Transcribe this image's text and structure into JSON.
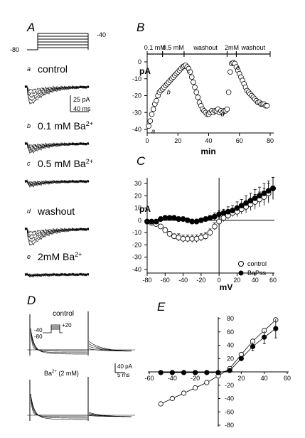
{
  "panels": {
    "A": {
      "label": "A",
      "protocol": {
        "hold": "-80",
        "step": "-40"
      },
      "traces": [
        {
          "letter": "a",
          "label": "control",
          "peak": 42
        },
        {
          "letter": "b",
          "label": "0.1 mM Ba",
          "sup": "2+",
          "peak": 22
        },
        {
          "letter": "c",
          "label": "0.5 mM Ba",
          "sup": "2+",
          "peak": 12
        },
        {
          "letter": "d",
          "label": "washout",
          "peak": 40
        },
        {
          "letter": "e",
          "label": "2mM Ba",
          "sup": "2+",
          "peak": 4
        }
      ],
      "scalebar": {
        "y": "25 pA",
        "x": "40 ms"
      }
    },
    "B": {
      "label": "B",
      "ylabel": "pA",
      "xlabel": "min",
      "bars": [
        "0.1 mM",
        "0.5 mM",
        "washout",
        "2mM",
        "washout"
      ],
      "point_labels": [
        "a",
        "b",
        "c",
        "d",
        "e"
      ]
    },
    "C": {
      "label": "C",
      "ylabel": "pA",
      "xlabel": "mV",
      "legend": [
        "control",
        "BaPss"
      ]
    },
    "D": {
      "label": "D",
      "top_label": "control",
      "bottom_label": "Ba",
      "bottom_sup": "2+",
      "bottom_suffix": " (2 mM)",
      "protocol": {
        "v1": "-40",
        "v2": "-80",
        "v3": "+20"
      },
      "scalebar": {
        "y": "40 pA",
        "x": "5 ms"
      }
    },
    "E": {
      "label": "E"
    }
  },
  "chart_data": [
    {
      "panel": "B",
      "type": "scatter",
      "xlim": [
        0,
        80
      ],
      "ylim": [
        -40,
        0
      ],
      "xticks": [
        0,
        20,
        40,
        60,
        80
      ],
      "yticks": [
        0,
        -10,
        -20,
        -30,
        -40
      ],
      "segments": [
        {
          "label": "0.1 mM",
          "x0": 0,
          "x1": 10
        },
        {
          "label": "0.5 mM",
          "x0": 10,
          "x1": 24
        },
        {
          "label": "washout",
          "x0": 24,
          "x1": 52
        },
        {
          "label": "2mM",
          "x0": 52,
          "x1": 58
        },
        {
          "label": "washout",
          "x0": 58,
          "x1": 80
        }
      ],
      "x": [
        1,
        2,
        3,
        4,
        5,
        6,
        7,
        8,
        9,
        10,
        11,
        12,
        13,
        14,
        15,
        16,
        17,
        18,
        19,
        20,
        21,
        22,
        23,
        24,
        25,
        26,
        27,
        28,
        29,
        30,
        31,
        32,
        33,
        34,
        35,
        36,
        37,
        38,
        39,
        40,
        41,
        42,
        43,
        44,
        45,
        46,
        47,
        48,
        49,
        50,
        51,
        52,
        53,
        54,
        55,
        56,
        57,
        58,
        59,
        60,
        61,
        62,
        63,
        64,
        65,
        66,
        67,
        68,
        69,
        70,
        71,
        72,
        73,
        74,
        75,
        76,
        77,
        78
      ],
      "y": [
        -38,
        -35,
        -31,
        -28,
        -25,
        -23,
        -20,
        -18,
        -17,
        -16,
        -15,
        -14,
        -13,
        -12,
        -11,
        -10,
        -9,
        -8,
        -7,
        -6,
        -5,
        -4,
        -3,
        -2.5,
        -2,
        -3,
        -4,
        -6,
        -9,
        -12,
        -15,
        -18,
        -21,
        -24,
        -26,
        -28,
        -29,
        -30,
        -31,
        -31,
        -30,
        -29,
        -30,
        -29,
        -29,
        -28,
        -30,
        -29,
        -30,
        -29,
        -29,
        -28,
        -18,
        -6,
        -1,
        -0.5,
        -1,
        -3,
        -5,
        -7,
        -9,
        -11,
        -13,
        -15,
        -17,
        -18,
        -19,
        -20,
        -21,
        -22,
        -23,
        -24,
        -24,
        -25,
        -25,
        -25,
        -26,
        -26
      ],
      "point_labels": [
        {
          "label": "a",
          "x": 1,
          "y": -38
        },
        {
          "label": "b",
          "x": 11,
          "y": -15
        },
        {
          "label": "c",
          "x": 24,
          "y": -2.5
        },
        {
          "label": "d",
          "x": 46,
          "y": -28
        },
        {
          "label": "e",
          "x": 56,
          "y": -0.5
        }
      ],
      "xlabel": "min",
      "ylabel": "pA"
    },
    {
      "panel": "C",
      "type": "scatter",
      "xlim": [
        -80,
        60
      ],
      "ylim": [
        -40,
        30
      ],
      "xticks": [
        -80,
        -60,
        -40,
        -20,
        0,
        20,
        40,
        60
      ],
      "yticks": [
        30,
        20,
        10,
        0,
        -10,
        -20,
        -30,
        -40
      ],
      "x": [
        -80,
        -75,
        -70,
        -65,
        -60,
        -55,
        -50,
        -45,
        -40,
        -35,
        -30,
        -25,
        -20,
        -15,
        -10,
        -5,
        0,
        5,
        10,
        15,
        20,
        25,
        30,
        35,
        40,
        45,
        50,
        55,
        60
      ],
      "series": [
        {
          "name": "control",
          "marker": "open-circle",
          "values": [
            -1,
            -2,
            -3,
            -5,
            -8,
            -11,
            -13,
            -14,
            -15,
            -15,
            -15,
            -15,
            -14,
            -13,
            -10,
            -5,
            -1,
            2,
            4,
            6,
            7,
            9,
            11,
            13,
            15,
            17,
            19,
            22,
            26
          ],
          "err": [
            1,
            1,
            1,
            1,
            2,
            2,
            2,
            3,
            3,
            3,
            3,
            3,
            3,
            3,
            3,
            3,
            3,
            3,
            3,
            3,
            4,
            4,
            5,
            5,
            6,
            6,
            7,
            8,
            9
          ]
        },
        {
          "name": "BaPss",
          "marker": "filled-circle",
          "values": [
            -1,
            -1,
            -1,
            1,
            2,
            2,
            2,
            1,
            1,
            0,
            -1,
            -1,
            0,
            1,
            2,
            3,
            5,
            6,
            7,
            8,
            10,
            12,
            14,
            16,
            18,
            20,
            22,
            24,
            26
          ],
          "err": [
            1,
            1,
            1,
            2,
            2,
            2,
            2,
            2,
            2,
            2,
            2,
            2,
            2,
            2,
            2,
            3,
            3,
            3,
            4,
            4,
            5,
            5,
            6,
            6,
            7,
            7,
            8,
            8,
            9
          ]
        }
      ],
      "xlabel": "mV",
      "ylabel": "pA",
      "legend_position": "bottom-right"
    },
    {
      "panel": "E",
      "type": "line",
      "xlim": [
        -60,
        60
      ],
      "ylim": [
        -80,
        80
      ],
      "xticks": [
        -60,
        -40,
        -20,
        0,
        20,
        40,
        60
      ],
      "yticks": [
        80,
        60,
        40,
        20,
        0,
        -20,
        -40,
        -60,
        -80
      ],
      "series": [
        {
          "marker": "open-circle",
          "x": [
            -50,
            -40,
            -30,
            -20,
            -10,
            0,
            10,
            20,
            30,
            40,
            50
          ],
          "values": [
            -48,
            -40,
            -32,
            -24,
            -16,
            -6,
            5,
            26,
            46,
            62,
            78
          ]
        },
        {
          "marker": "filled-circle",
          "x": [
            -50,
            -40,
            -30,
            -20,
            -10,
            0,
            10,
            20,
            30,
            40,
            50
          ],
          "values": [
            -1,
            -1,
            -1,
            -1,
            -1,
            -1,
            2,
            20,
            38,
            52,
            65
          ],
          "err": [
            0,
            0,
            0,
            0,
            0,
            0,
            1,
            3,
            6,
            10,
            14
          ]
        }
      ]
    }
  ]
}
